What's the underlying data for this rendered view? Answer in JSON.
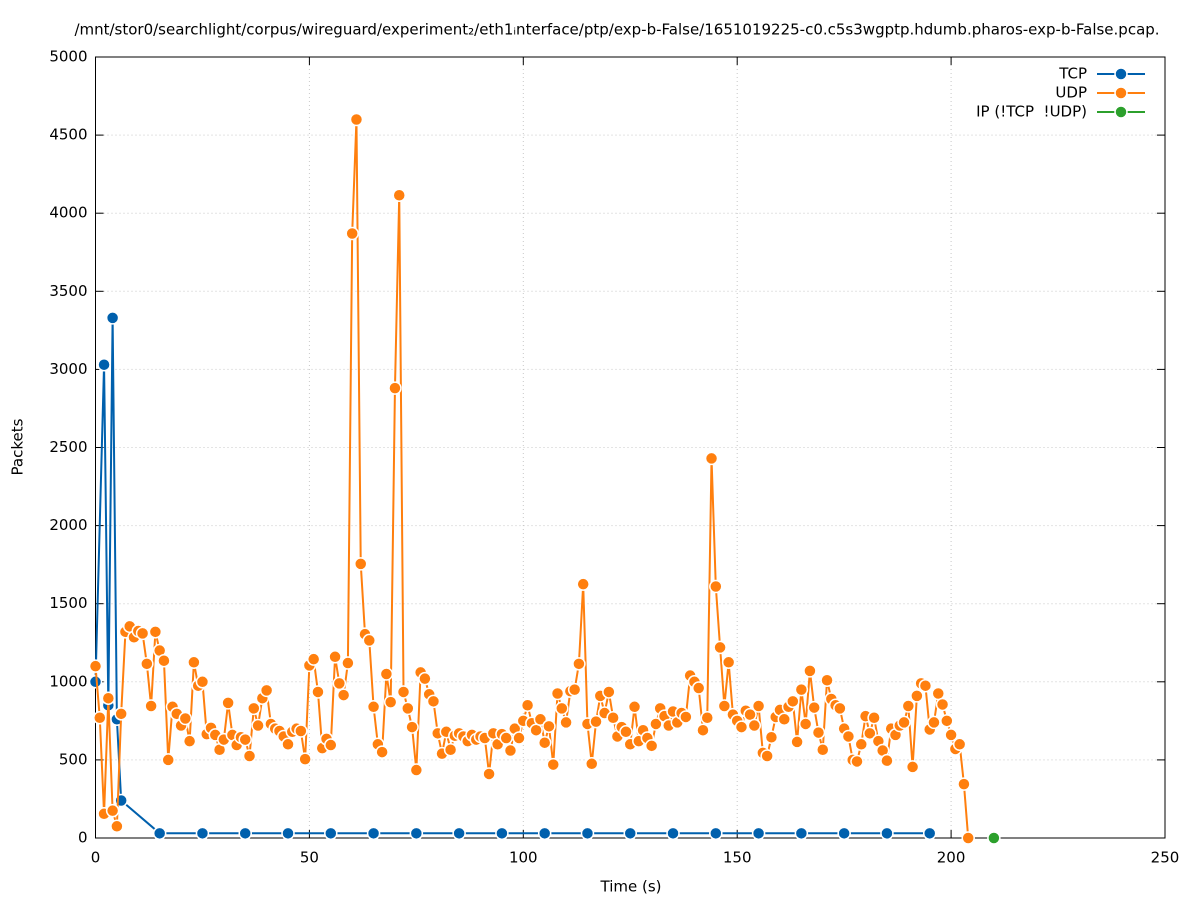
{
  "chart_data": {
    "type": "line",
    "title": "/mnt/stor0/searchlight/corpus/wireguard/experiment₂/eth1ᵢnterface/ptp/exp-b-False/1651019225-c0.c5s3wgptp.hdumb.pharos-exp-b-False.pcap.",
    "x_label": "Time (s)",
    "y_label": "Packets",
    "xlim": [
      0,
      250
    ],
    "xticks": [
      0,
      50,
      100,
      150,
      200,
      250
    ],
    "ylim": [
      0,
      5000
    ],
    "yticks": [
      0,
      500,
      1000,
      1500,
      2000,
      2500,
      3000,
      3500,
      4000,
      4500,
      5000
    ],
    "grid": true,
    "legend": "top-right",
    "series": [
      {
        "name": "TCP",
        "color": "#0060ad",
        "x": [
          0,
          2,
          3,
          4,
          5,
          6,
          15,
          25,
          35,
          45,
          55,
          65,
          75,
          85,
          95,
          105,
          115,
          125,
          135,
          145,
          155,
          165,
          175,
          185,
          195
        ],
        "values": [
          1000,
          3030,
          850,
          3330,
          760,
          240,
          30,
          30,
          30,
          30,
          30,
          30,
          30,
          30,
          30,
          30,
          30,
          30,
          30,
          30,
          30,
          30,
          30,
          30,
          30
        ]
      },
      {
        "name": "UDP",
        "color": "#ff7f0e",
        "x": [
          0,
          1,
          2,
          3,
          4,
          5,
          6,
          7,
          8,
          9,
          10,
          11,
          12,
          13,
          14,
          15,
          16,
          17,
          18,
          19,
          20,
          21,
          22,
          23,
          24,
          25,
          26,
          27,
          28,
          29,
          30,
          31,
          32,
          33,
          34,
          35,
          36,
          37,
          38,
          39,
          40,
          41,
          42,
          43,
          44,
          45,
          46,
          47,
          48,
          49,
          50,
          51,
          52,
          53,
          54,
          55,
          56,
          57,
          58,
          59,
          60,
          61,
          62,
          63,
          64,
          65,
          66,
          67,
          68,
          69,
          70,
          71,
          72,
          73,
          74,
          75,
          76,
          77,
          78,
          79,
          80,
          81,
          82,
          83,
          84,
          85,
          86,
          87,
          88,
          89,
          90,
          91,
          92,
          93,
          94,
          95,
          96,
          97,
          98,
          99,
          100,
          101,
          102,
          103,
          104,
          105,
          106,
          107,
          108,
          109,
          110,
          111,
          112,
          113,
          114,
          115,
          116,
          117,
          118,
          119,
          120,
          121,
          122,
          123,
          124,
          125,
          126,
          127,
          128,
          129,
          130,
          131,
          132,
          133,
          134,
          135,
          136,
          137,
          138,
          139,
          140,
          141,
          142,
          143,
          144,
          145,
          146,
          147,
          148,
          149,
          150,
          151,
          152,
          153,
          154,
          155,
          156,
          157,
          158,
          159,
          160,
          161,
          162,
          163,
          164,
          165,
          166,
          167,
          168,
          169,
          170,
          171,
          172,
          173,
          174,
          175,
          176,
          177,
          178,
          179,
          180,
          181,
          182,
          183,
          184,
          185,
          186,
          187,
          188,
          189,
          190,
          191,
          192,
          193,
          194,
          195,
          196,
          197,
          198,
          199,
          200,
          201,
          202,
          203,
          204
        ],
        "values": [
          1100,
          770,
          155,
          895,
          175,
          75,
          795,
          1320,
          1355,
          1285,
          1325,
          1310,
          1115,
          845,
          1320,
          1200,
          1135,
          500,
          840,
          795,
          720,
          765,
          620,
          1125,
          975,
          1000,
          665,
          705,
          660,
          565,
          630,
          865,
          660,
          595,
          645,
          630,
          525,
          830,
          720,
          895,
          945,
          730,
          700,
          685,
          650,
          600,
          680,
          700,
          685,
          505,
          1105,
          1145,
          935,
          575,
          635,
          595,
          1160,
          990,
          915,
          1120,
          3870,
          4600,
          1755,
          1305,
          1265,
          840,
          600,
          550,
          1050,
          870,
          2880,
          4115,
          935,
          830,
          710,
          435,
          1060,
          1020,
          920,
          875,
          670,
          540,
          680,
          565,
          655,
          670,
          650,
          620,
          660,
          630,
          650,
          640,
          410,
          670,
          600,
          665,
          640,
          560,
          700,
          640,
          750,
          850,
          735,
          690,
          760,
          610,
          715,
          470,
          925,
          830,
          740,
          940,
          950,
          1115,
          1625,
          730,
          475,
          745,
          910,
          800,
          935,
          770,
          650,
          710,
          680,
          600,
          840,
          620,
          690,
          640,
          590,
          730,
          830,
          780,
          720,
          810,
          740,
          800,
          775,
          1040,
          1000,
          960,
          690,
          770,
          2430,
          1610,
          1220,
          845,
          1125,
          790,
          750,
          710,
          815,
          790,
          720,
          845,
          545,
          525,
          645,
          775,
          820,
          760,
          840,
          875,
          615,
          950,
          730,
          1070,
          835,
          675,
          565,
          1010,
          890,
          850,
          830,
          700,
          650,
          500,
          490,
          600,
          780,
          670,
          770,
          620,
          560,
          495,
          700,
          660,
          720,
          740,
          845,
          455,
          910,
          990,
          975,
          695,
          740,
          925,
          855,
          750,
          660,
          570,
          600,
          345,
          0
        ]
      },
      {
        "name": "IP (!TCP  !UDP)",
        "color": "#2ca02c",
        "x": [
          210
        ],
        "values": [
          0
        ]
      }
    ]
  }
}
